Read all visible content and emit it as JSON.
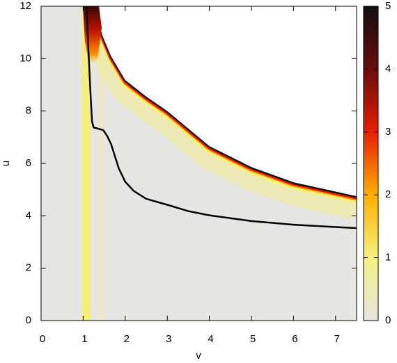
{
  "chart_data": {
    "type": "heatmap",
    "xlabel": "v",
    "ylabel": "u",
    "xlim": [
      0,
      7.5
    ],
    "ylim": [
      0,
      12
    ],
    "xticks": [
      0,
      1,
      2,
      3,
      4,
      5,
      6,
      7
    ],
    "yticks": [
      0,
      2,
      4,
      6,
      8,
      10,
      12
    ],
    "colorbar": {
      "lim": [
        0,
        5
      ],
      "ticks": [
        0,
        1,
        2,
        3,
        4,
        5
      ],
      "colors": [
        "#e5e5e3",
        "#f6f07e",
        "#ffb000",
        "#e81e00",
        "#6a0c0c",
        "#101010"
      ]
    },
    "boundary": {
      "x": [
        1.32,
        1.45,
        1.66,
        2,
        2.5,
        3,
        4,
        5,
        6,
        7.5
      ],
      "values": [
        12,
        10.9,
        10.1,
        9.18,
        8.55,
        8,
        6.66,
        5.86,
        5.28,
        4.75
      ]
    },
    "series": [
      {
        "color": "#000000",
        "x": [
          1.08,
          1.12,
          1.17,
          1.21,
          1.25,
          1.35,
          1.48,
          1.57,
          1.66,
          1.75,
          1.85,
          2.0,
          2.2,
          2.5,
          3,
          3.5,
          4,
          5,
          6,
          7,
          7.5
        ],
        "values": [
          12,
          10.5,
          8.8,
          7.6,
          7.37,
          7.33,
          7.27,
          7.05,
          6.75,
          6.3,
          5.8,
          5.3,
          4.95,
          4.65,
          4.42,
          4.18,
          4.02,
          3.8,
          3.66,
          3.57,
          3.53
        ]
      }
    ]
  }
}
